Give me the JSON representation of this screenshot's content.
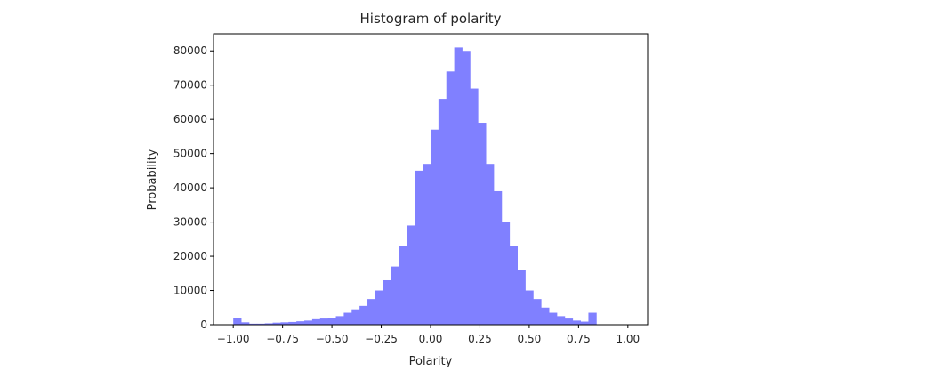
{
  "chart_data": {
    "type": "bar",
    "title": "Histogram of polarity",
    "xlabel": "Polarity",
    "ylabel": "Probability",
    "xlim": [
      -1.1,
      1.1
    ],
    "ylim": [
      0,
      85000
    ],
    "grid": false,
    "color": "#8080ff",
    "bin_width": 0.04,
    "bin_start": -1.0,
    "counts": [
      2000,
      700,
      300,
      300,
      400,
      600,
      700,
      800,
      1000,
      1200,
      1600,
      1800,
      1900,
      2500,
      3500,
      4500,
      5500,
      7500,
      10000,
      13000,
      17000,
      23000,
      29000,
      45000,
      47000,
      57000,
      66000,
      74000,
      81000,
      80000,
      69000,
      59000,
      47000,
      39000,
      30000,
      23000,
      16000,
      10000,
      7500,
      5000,
      3500,
      2500,
      1800,
      1200,
      900,
      3500
    ],
    "xticks": [
      -1.0,
      -0.75,
      -0.5,
      -0.25,
      0.0,
      0.25,
      0.5,
      0.75,
      1.0
    ],
    "xtick_labels": [
      "−1.00",
      "−0.75",
      "−0.50",
      "−0.25",
      "0.00",
      "0.25",
      "0.50",
      "0.75",
      "1.00"
    ],
    "yticks": [
      0,
      10000,
      20000,
      30000,
      40000,
      50000,
      60000,
      70000,
      80000
    ],
    "ytick_labels": [
      "0",
      "10000",
      "20000",
      "30000",
      "40000",
      "50000",
      "60000",
      "70000",
      "80000"
    ]
  }
}
